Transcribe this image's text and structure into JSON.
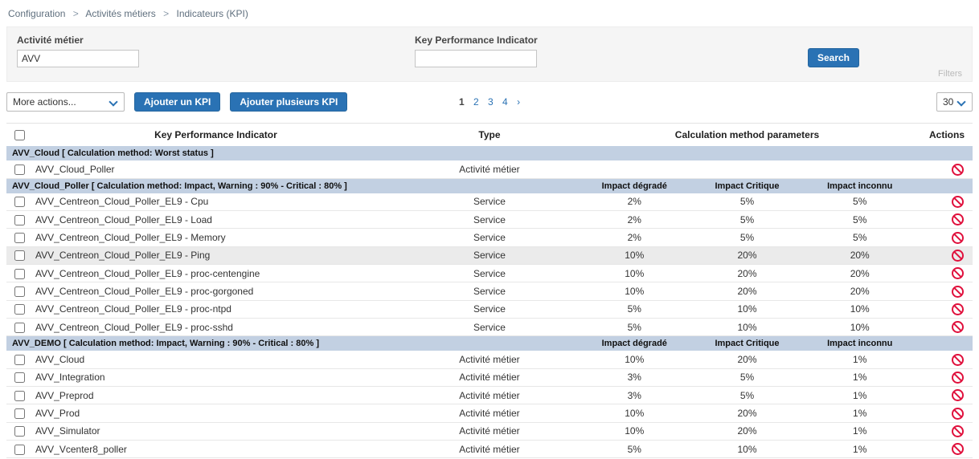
{
  "colors": {
    "accent_blue": "#2a72b4",
    "group_header_bg": "#c2d0e2",
    "action_red": "#e0103c",
    "panel_bg": "#f5f5f5",
    "highlight_row": "#ebebeb"
  },
  "breadcrumb": {
    "separator": ">",
    "items": [
      "Configuration",
      "Activités métiers",
      "Indicateurs (KPI)"
    ]
  },
  "filter_panel": {
    "ba_label": "Activité métier",
    "ba_value": "AVV",
    "kpi_label": "Key Performance Indicator",
    "kpi_value": "",
    "search_button": "Search",
    "filters_link": "Filters"
  },
  "toolbar": {
    "more_actions": "More actions...",
    "add_kpi_button": "Ajouter un KPI",
    "add_multiple_kpi_button": "Ajouter plusieurs KPI",
    "pagination": {
      "pages": [
        "1",
        "2",
        "3",
        "4"
      ],
      "current": "1",
      "next": "›"
    },
    "page_size": "30"
  },
  "table": {
    "headers": {
      "kpi": "Key Performance Indicator",
      "type": "Type",
      "calc_params": "Calculation method parameters",
      "actions": "Actions"
    },
    "groups": [
      {
        "title": "AVV_Cloud [ Calculation method: Worst status ]",
        "param_headers": [
          "",
          "",
          ""
        ],
        "rows": [
          {
            "name": "AVV_Cloud_Poller",
            "type": "Activité métier",
            "params": [
              "",
              "",
              ""
            ]
          }
        ]
      },
      {
        "title": "AVV_Cloud_Poller [ Calculation method: Impact, Warning : 90% - Critical : 80% ]",
        "param_headers": [
          "Impact dégradé",
          "Impact Critique",
          "Impact inconnu"
        ],
        "rows": [
          {
            "name": "AVV_Centreon_Cloud_Poller_EL9 - Cpu",
            "type": "Service",
            "params": [
              "2%",
              "5%",
              "5%"
            ]
          },
          {
            "name": "AVV_Centreon_Cloud_Poller_EL9 - Load",
            "type": "Service",
            "params": [
              "2%",
              "5%",
              "5%"
            ]
          },
          {
            "name": "AVV_Centreon_Cloud_Poller_EL9 - Memory",
            "type": "Service",
            "params": [
              "2%",
              "5%",
              "5%"
            ]
          },
          {
            "name": "AVV_Centreon_Cloud_Poller_EL9 - Ping",
            "type": "Service",
            "params": [
              "10%",
              "20%",
              "20%"
            ],
            "highlighted": true
          },
          {
            "name": "AVV_Centreon_Cloud_Poller_EL9 - proc-centengine",
            "type": "Service",
            "params": [
              "10%",
              "20%",
              "20%"
            ]
          },
          {
            "name": "AVV_Centreon_Cloud_Poller_EL9 - proc-gorgoned",
            "type": "Service",
            "params": [
              "10%",
              "20%",
              "20%"
            ]
          },
          {
            "name": "AVV_Centreon_Cloud_Poller_EL9 - proc-ntpd",
            "type": "Service",
            "params": [
              "5%",
              "10%",
              "10%"
            ]
          },
          {
            "name": "AVV_Centreon_Cloud_Poller_EL9 - proc-sshd",
            "type": "Service",
            "params": [
              "5%",
              "10%",
              "10%"
            ]
          }
        ]
      },
      {
        "title": "AVV_DEMO [ Calculation method: Impact, Warning : 90% - Critical : 80% ]",
        "param_headers": [
          "Impact dégradé",
          "Impact Critique",
          "Impact inconnu"
        ],
        "rows": [
          {
            "name": "AVV_Cloud",
            "type": "Activité métier",
            "params": [
              "10%",
              "20%",
              "1%"
            ]
          },
          {
            "name": "AVV_Integration",
            "type": "Activité métier",
            "params": [
              "3%",
              "5%",
              "1%"
            ]
          },
          {
            "name": "AVV_Preprod",
            "type": "Activité métier",
            "params": [
              "3%",
              "5%",
              "1%"
            ]
          },
          {
            "name": "AVV_Prod",
            "type": "Activité métier",
            "params": [
              "10%",
              "20%",
              "1%"
            ]
          },
          {
            "name": "AVV_Simulator",
            "type": "Activité métier",
            "params": [
              "10%",
              "20%",
              "1%"
            ]
          },
          {
            "name": "AVV_Vcenter8_poller",
            "type": "Activité métier",
            "params": [
              "5%",
              "10%",
              "1%"
            ]
          }
        ]
      }
    ]
  }
}
